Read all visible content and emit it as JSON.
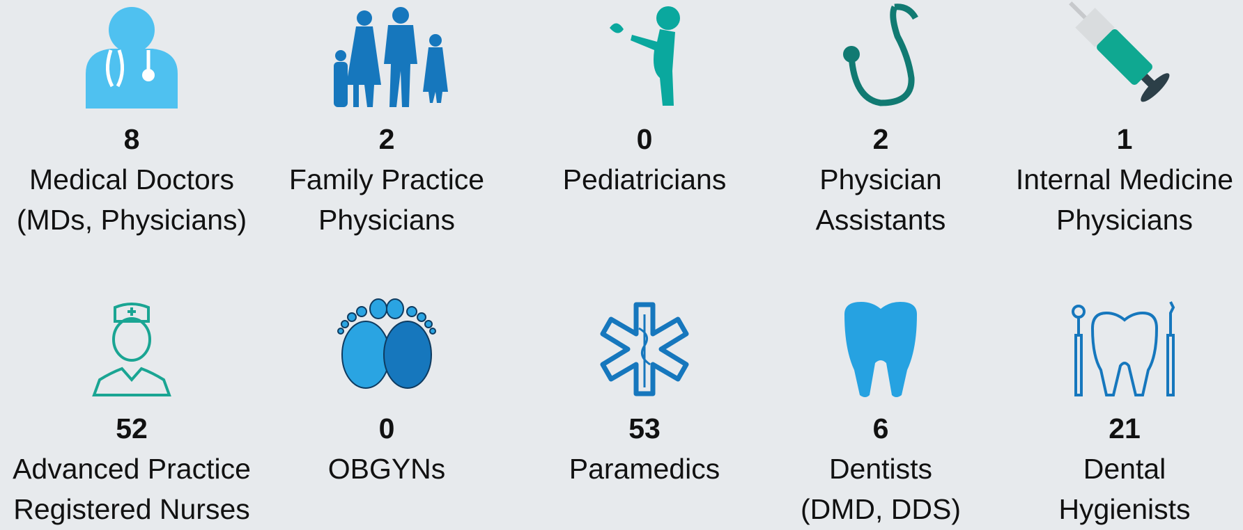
{
  "items": [
    {
      "count": 8,
      "label": [
        "Medical Doctors",
        "(MDs, Physicians)"
      ]
    },
    {
      "count": 2,
      "label": [
        "Family Practice",
        "Physicians"
      ]
    },
    {
      "count": 0,
      "label": [
        "Pediatricians"
      ]
    },
    {
      "count": 2,
      "label": [
        "Physician",
        "Assistants"
      ]
    },
    {
      "count": 1,
      "label": [
        "Internal Medicine",
        "Physicians"
      ]
    },
    {
      "count": 52,
      "label": [
        "Advanced Practice",
        "Registered Nurses"
      ]
    },
    {
      "count": 0,
      "label": [
        "OBGYNs"
      ]
    },
    {
      "count": 53,
      "label": [
        "Paramedics"
      ]
    },
    {
      "count": 6,
      "label": [
        "Dentists",
        "(DMD, DDS)"
      ]
    },
    {
      "count": 21,
      "label": [
        "Dental",
        "Hygienists"
      ]
    }
  ]
}
